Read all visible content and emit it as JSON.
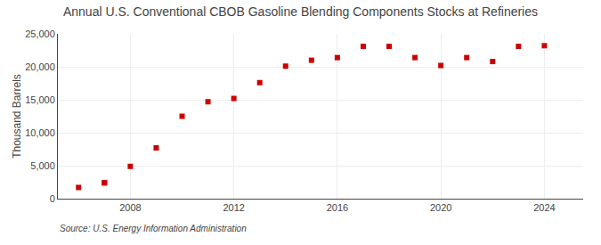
{
  "chart_data": {
    "type": "scatter",
    "title": "Annual U.S. Conventional CBOB Gasoline Blending Components Stocks at Refineries",
    "ylabel": "Thousand Barrels",
    "annotations": [
      "Source: U.S. Energy Information Administration"
    ],
    "x": [
      2006,
      2007,
      2007,
      2008,
      2009,
      2010,
      2011,
      2012,
      2013,
      2014,
      2015,
      2016,
      2017,
      2018,
      2019,
      2020,
      2021,
      2022,
      2023,
      2024
    ],
    "values": [
      1700,
      2400,
      2400,
      4900,
      7700,
      12500,
      14700,
      15200,
      17600,
      20100,
      21000,
      21400,
      23100,
      23100,
      21400,
      20200,
      21400,
      20800,
      23100,
      23200
    ],
    "color": "#cc0000",
    "marker": "square",
    "xlim": [
      2005.2,
      2025.5
    ],
    "xticks": [
      2008,
      2012,
      2016,
      2020,
      2024
    ],
    "ylim": [
      0,
      25000
    ],
    "yticks": [
      0,
      {
        "value": 5000,
        "label": "5,000"
      },
      {
        "value": 10000,
        "label": "10,000"
      },
      {
        "value": 15000,
        "label": "15,000"
      },
      {
        "value": 20000,
        "label": "20,000"
      },
      {
        "value": 25000,
        "label": "25,000"
      }
    ],
    "grid": true
  }
}
